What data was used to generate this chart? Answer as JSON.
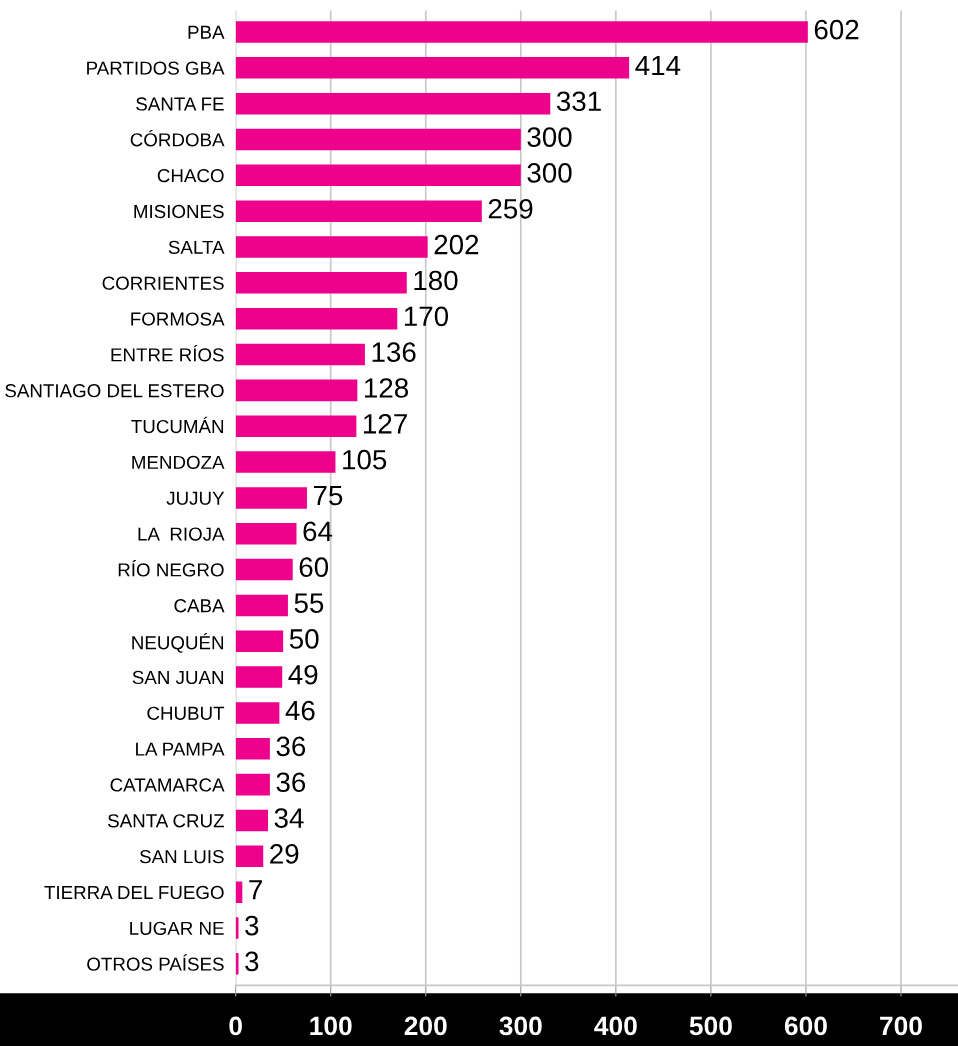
{
  "chart_data": {
    "type": "bar",
    "orientation": "horizontal",
    "categories": [
      "PBA",
      "PARTIDOS GBA",
      "SANTA FE",
      "CÓRDOBA",
      "CHACO",
      "MISIONES",
      "SALTA",
      "CORRIENTES",
      "FORMOSA",
      "ENTRE RÍOS",
      "SANTIAGO DEL ESTERO",
      "TUCUMÁN",
      "MENDOZA",
      "JUJUY",
      "LA  RIOJA",
      "RÍO NEGRO",
      "CABA",
      "NEUQUÉN",
      "SAN JUAN",
      "CHUBUT",
      "LA PAMPA",
      "CATAMARCA",
      "SANTA CRUZ",
      "SAN LUIS",
      "TIERRA DEL FUEGO",
      "LUGAR NE",
      "OTROS PAÍSES"
    ],
    "values": [
      602,
      414,
      331,
      300,
      300,
      259,
      202,
      180,
      170,
      136,
      128,
      127,
      105,
      75,
      64,
      60,
      55,
      50,
      49,
      46,
      36,
      36,
      34,
      29,
      7,
      3,
      3
    ],
    "color": "#ec008c",
    "xlim": [
      0,
      760
    ],
    "xticks": [
      0,
      100,
      200,
      300,
      400,
      500,
      600,
      700
    ],
    "grid": "x",
    "data_labels": true
  }
}
